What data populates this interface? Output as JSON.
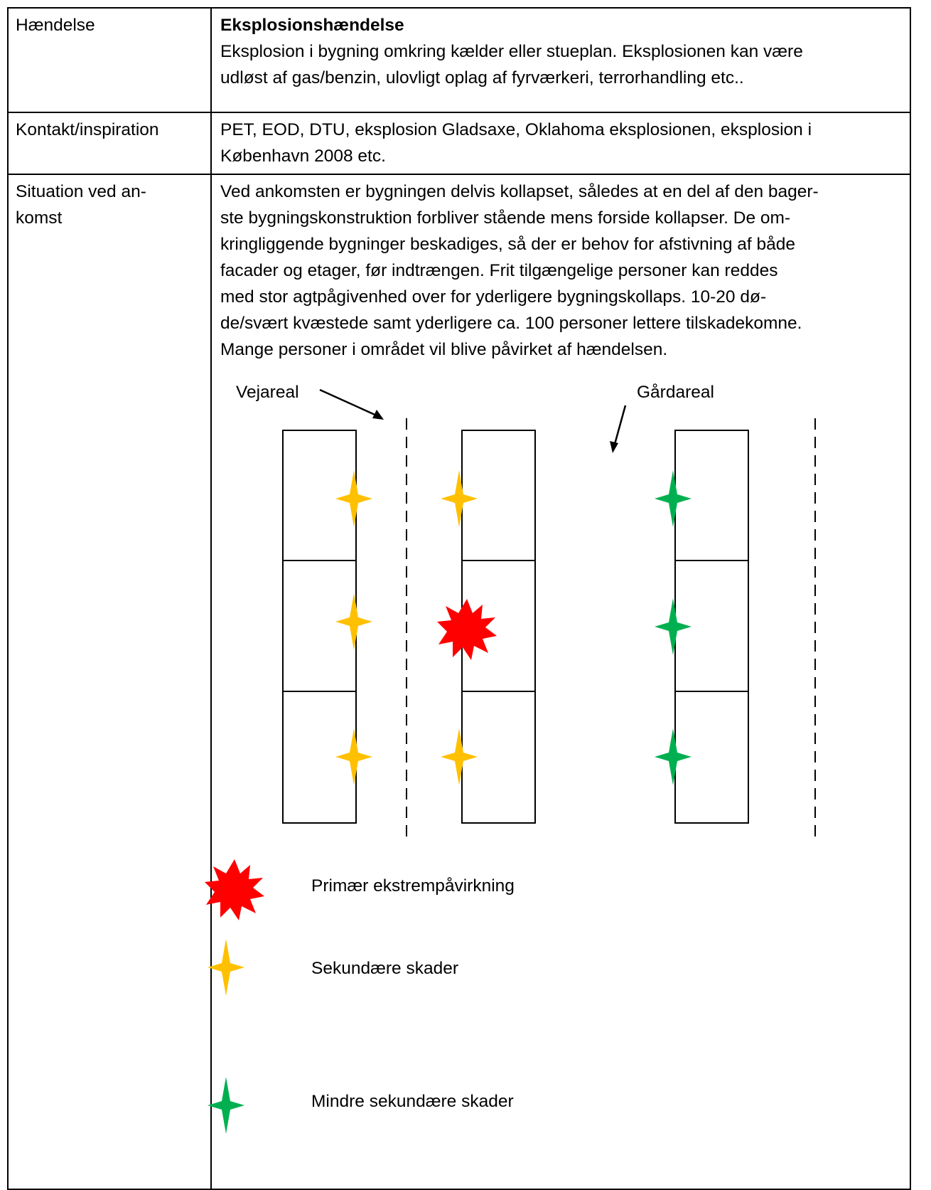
{
  "rows": [
    {
      "label": "Hændelse",
      "title": "Eksplosionshændelse",
      "text": "Eksplosion i bygning omkring kælder eller stueplan. Eksplosionen kan være\nudløst af gas/benzin, ulovligt oplag af fyrværkeri, terrorhandling etc.."
    },
    {
      "label": "Kontakt/inspiration",
      "text": "PET, EOD, DTU, eksplosion Gladsaxe, Oklahoma eksplosionen, eksplosion i\nKøbenhavn 2008 etc."
    },
    {
      "label": "Situation ved an-\nkomst",
      "text": "Ved ankomsten er bygningen delvis kollapset, således at en del af den bager-\nste bygningskonstruktion forbliver stående mens forside kollapser. De om-\nkringliggende bygninger beskadiges, så der er behov for afstivning af både\nfacader og etager, før indtrængen. Frit tilgængelige personer kan reddes\nmed stor agtpågivenhed over for yderligere bygningskollaps. 10-20 dø-\nde/svært kvæstede samt yderligere ca. 100 personer lettere tilskadekomne.\nMange personer i området vil blive påvirket af hændelsen."
    }
  ],
  "diagram": {
    "label_road": "Vejareal",
    "label_yard": "Gårdareal",
    "colors": {
      "primary": "#ff0000",
      "secondary": "#ffc000",
      "minor": "#00b050"
    }
  },
  "legend": [
    {
      "icon": "explosion-icon",
      "label": "Primær ekstrempåvirkning"
    },
    {
      "icon": "yellow-star-icon",
      "label": "Sekundære skader"
    },
    {
      "icon": "green-star-icon",
      "label": "Mindre sekundære skader"
    }
  ]
}
